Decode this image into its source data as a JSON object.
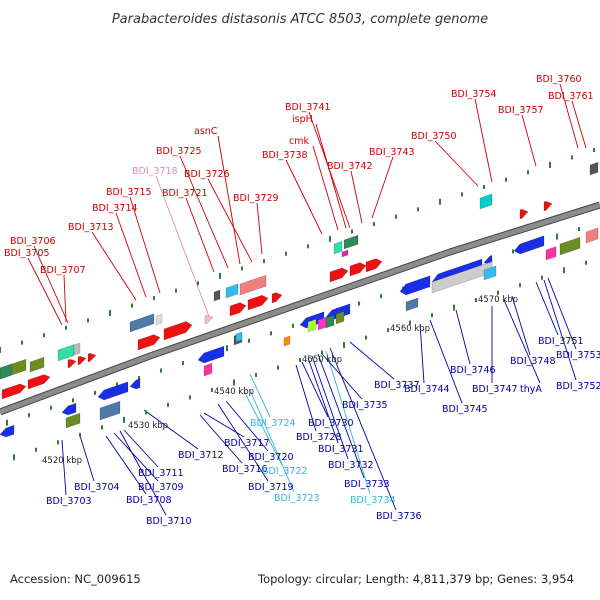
{
  "title": "Parabacteroides distasonis ATCC 8503, complete genome",
  "footer": {
    "accession": "Accession: NC_009615",
    "summary": "Topology: circular; Length: 4,811,379 bp; Genes: 3,954"
  },
  "colors": {
    "forward_label": "#cc0000",
    "reverse_label": "#0000aa",
    "rna_forward_label": "#e68ab8",
    "rna_reverse_label": "#33b5dd",
    "backbone": "#8c8c8c",
    "tick": "#2e7d32"
  },
  "ticks": [
    {
      "label": "4520 kbp"
    },
    {
      "label": "4530 kbp"
    },
    {
      "label": "4540 kbp"
    },
    {
      "label": "4550 kbp"
    },
    {
      "label": "4560 kbp"
    },
    {
      "label": "4570 kbp"
    }
  ],
  "forward_labels": [
    {
      "text": "BDI_3705",
      "color": "#cc0000"
    },
    {
      "text": "BDI_3706",
      "color": "#cc0000"
    },
    {
      "text": "BDI_3707",
      "color": "#cc0000"
    },
    {
      "text": "BDI_3713",
      "color": "#cc0000"
    },
    {
      "text": "BDI_3714",
      "color": "#cc0000"
    },
    {
      "text": "BDI_3715",
      "color": "#cc0000"
    },
    {
      "text": "BDI_3718",
      "color": "#e68ab8"
    },
    {
      "text": "BDI_3721",
      "color": "#cc0000"
    },
    {
      "text": "BDI_3725",
      "color": "#cc0000"
    },
    {
      "text": "asnC",
      "color": "#cc0000"
    },
    {
      "text": "BDI_3726",
      "color": "#cc0000"
    },
    {
      "text": "BDI_3729",
      "color": "#cc0000"
    },
    {
      "text": "BDI_3738",
      "color": "#cc0000"
    },
    {
      "text": "cmk",
      "color": "#cc0000"
    },
    {
      "text": "ispH",
      "color": "#cc0000"
    },
    {
      "text": "BDI_3741",
      "color": "#cc0000"
    },
    {
      "text": "BDI_3742",
      "color": "#cc0000"
    },
    {
      "text": "BDI_3743",
      "color": "#cc0000"
    },
    {
      "text": "BDI_3750",
      "color": "#cc0000"
    },
    {
      "text": "BDI_3754",
      "color": "#cc0000"
    },
    {
      "text": "BDI_3757",
      "color": "#cc0000"
    },
    {
      "text": "BDI_3760",
      "color": "#cc0000"
    },
    {
      "text": "BDI_3761",
      "color": "#cc0000"
    }
  ],
  "reverse_labels": [
    {
      "text": "BDI_3703",
      "color": "#0000aa"
    },
    {
      "text": "BDI_3704",
      "color": "#0000aa"
    },
    {
      "text": "BDI_3708",
      "color": "#0000aa"
    },
    {
      "text": "BDI_3709",
      "color": "#0000aa"
    },
    {
      "text": "BDI_3710",
      "color": "#0000aa"
    },
    {
      "text": "BDI_3711",
      "color": "#0000aa"
    },
    {
      "text": "BDI_3712",
      "color": "#0000aa"
    },
    {
      "text": "BDI_3716",
      "color": "#0000aa"
    },
    {
      "text": "BDI_3717",
      "color": "#0000aa"
    },
    {
      "text": "BDI_3719",
      "color": "#0000aa"
    },
    {
      "text": "BDI_3720",
      "color": "#0000aa"
    },
    {
      "text": "BDI_3722",
      "color": "#33b5dd"
    },
    {
      "text": "BDI_3723",
      "color": "#33b5dd"
    },
    {
      "text": "BDI_3724",
      "color": "#33b5dd"
    },
    {
      "text": "BDI_3728",
      "color": "#0000aa"
    },
    {
      "text": "BDI_3730",
      "color": "#0000aa"
    },
    {
      "text": "BDI_3731",
      "color": "#0000aa"
    },
    {
      "text": "BDI_3732",
      "color": "#0000aa"
    },
    {
      "text": "BDI_3733",
      "color": "#0000aa"
    },
    {
      "text": "BDI_3734",
      "color": "#33b5dd"
    },
    {
      "text": "BDI_3735",
      "color": "#0000aa"
    },
    {
      "text": "BDI_3736",
      "color": "#0000aa"
    },
    {
      "text": "BDI_3737",
      "color": "#0000aa"
    },
    {
      "text": "BDI_3744",
      "color": "#0000aa"
    },
    {
      "text": "BDI_3745",
      "color": "#0000aa"
    },
    {
      "text": "BDI_3746",
      "color": "#0000aa"
    },
    {
      "text": "BDI_3747",
      "color": "#0000aa"
    },
    {
      "text": "thyA",
      "color": "#0000aa"
    },
    {
      "text": "BDI_3748",
      "color": "#0000aa"
    },
    {
      "text": "BDI_3751",
      "color": "#0000aa"
    },
    {
      "text": "BDI_3752",
      "color": "#0000aa"
    },
    {
      "text": "BDI_3753",
      "color": "#0000aa"
    }
  ]
}
